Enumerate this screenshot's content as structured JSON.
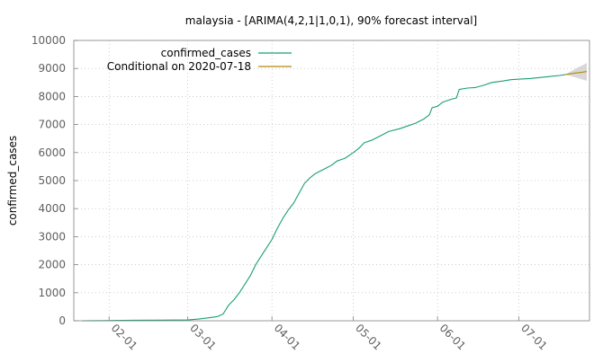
{
  "chart_data": {
    "type": "line",
    "title": "malaysia -  [ARIMA(4,2,1|1,0,1), 90% forecast interval]",
    "xlabel": "",
    "ylabel": "confirmed_cases",
    "x_type": "date",
    "xlim": [
      "2020-01-19",
      "2020-07-27"
    ],
    "ylim": [
      0,
      10000
    ],
    "x_ticks": [
      "2020-02-01",
      "2020-03-01",
      "2020-04-01",
      "2020-05-01",
      "2020-06-01",
      "2020-07-01"
    ],
    "x_tick_labels": [
      "02-01",
      "03-01",
      "04-01",
      "05-01",
      "06-01",
      "07-01"
    ],
    "y_ticks": [
      0,
      1000,
      2000,
      3000,
      4000,
      5000,
      6000,
      7000,
      8000,
      9000,
      10000
    ],
    "grid": true,
    "legend_position": "top-left",
    "colors": {
      "confirmed_cases": "#1a9e77",
      "forecast": "#b8860b",
      "interval": "#c8c8c8"
    },
    "series": [
      {
        "name": "confirmed_cases",
        "points": [
          [
            "2020-01-22",
            0
          ],
          [
            "2020-01-25",
            3
          ],
          [
            "2020-02-01",
            8
          ],
          [
            "2020-02-10",
            18
          ],
          [
            "2020-02-20",
            22
          ],
          [
            "2020-03-01",
            29
          ],
          [
            "2020-03-05",
            60
          ],
          [
            "2020-03-09",
            110
          ],
          [
            "2020-03-12",
            150
          ],
          [
            "2020-03-14",
            240
          ],
          [
            "2020-03-16",
            550
          ],
          [
            "2020-03-18",
            750
          ],
          [
            "2020-03-20",
            1000
          ],
          [
            "2020-03-22",
            1300
          ],
          [
            "2020-03-24",
            1600
          ],
          [
            "2020-03-26",
            2000
          ],
          [
            "2020-03-28",
            2300
          ],
          [
            "2020-03-30",
            2600
          ],
          [
            "2020-04-01",
            2900
          ],
          [
            "2020-04-03",
            3300
          ],
          [
            "2020-04-05",
            3650
          ],
          [
            "2020-04-07",
            3950
          ],
          [
            "2020-04-09",
            4200
          ],
          [
            "2020-04-11",
            4550
          ],
          [
            "2020-04-13",
            4900
          ],
          [
            "2020-04-15",
            5100
          ],
          [
            "2020-04-17",
            5250
          ],
          [
            "2020-04-19",
            5350
          ],
          [
            "2020-04-21",
            5450
          ],
          [
            "2020-04-23",
            5550
          ],
          [
            "2020-04-25",
            5700
          ],
          [
            "2020-04-28",
            5800
          ],
          [
            "2020-05-01",
            6000
          ],
          [
            "2020-05-03",
            6150
          ],
          [
            "2020-05-05",
            6350
          ],
          [
            "2020-05-08",
            6450
          ],
          [
            "2020-05-11",
            6600
          ],
          [
            "2020-05-14",
            6750
          ],
          [
            "2020-05-18",
            6850
          ],
          [
            "2020-05-21",
            6950
          ],
          [
            "2020-05-24",
            7050
          ],
          [
            "2020-05-27",
            7200
          ],
          [
            "2020-05-29",
            7350
          ],
          [
            "2020-05-30",
            7600
          ],
          [
            "2020-06-01",
            7650
          ],
          [
            "2020-06-03",
            7800
          ],
          [
            "2020-06-06",
            7900
          ],
          [
            "2020-06-08",
            7950
          ],
          [
            "2020-06-09",
            8250
          ],
          [
            "2020-06-12",
            8300
          ],
          [
            "2020-06-15",
            8320
          ],
          [
            "2020-06-18",
            8400
          ],
          [
            "2020-06-21",
            8500
          ],
          [
            "2020-06-25",
            8550
          ],
          [
            "2020-06-28",
            8600
          ],
          [
            "2020-07-01",
            8620
          ],
          [
            "2020-07-05",
            8640
          ],
          [
            "2020-07-09",
            8680
          ],
          [
            "2020-07-13",
            8720
          ],
          [
            "2020-07-16",
            8750
          ],
          [
            "2020-07-18",
            8780
          ]
        ]
      },
      {
        "name": "Conditional on 2020-07-18",
        "points": [
          [
            "2020-07-18",
            8780
          ],
          [
            "2020-07-20",
            8810
          ],
          [
            "2020-07-22",
            8840
          ],
          [
            "2020-07-24",
            8860
          ],
          [
            "2020-07-26",
            8890
          ]
        ]
      }
    ],
    "forecast_interval": {
      "x": [
        "2020-07-18",
        "2020-07-20",
        "2020-07-22",
        "2020-07-24",
        "2020-07-26"
      ],
      "lower": [
        8780,
        8730,
        8680,
        8620,
        8560
      ],
      "upper": [
        8780,
        8890,
        9000,
        9100,
        9190
      ]
    }
  }
}
